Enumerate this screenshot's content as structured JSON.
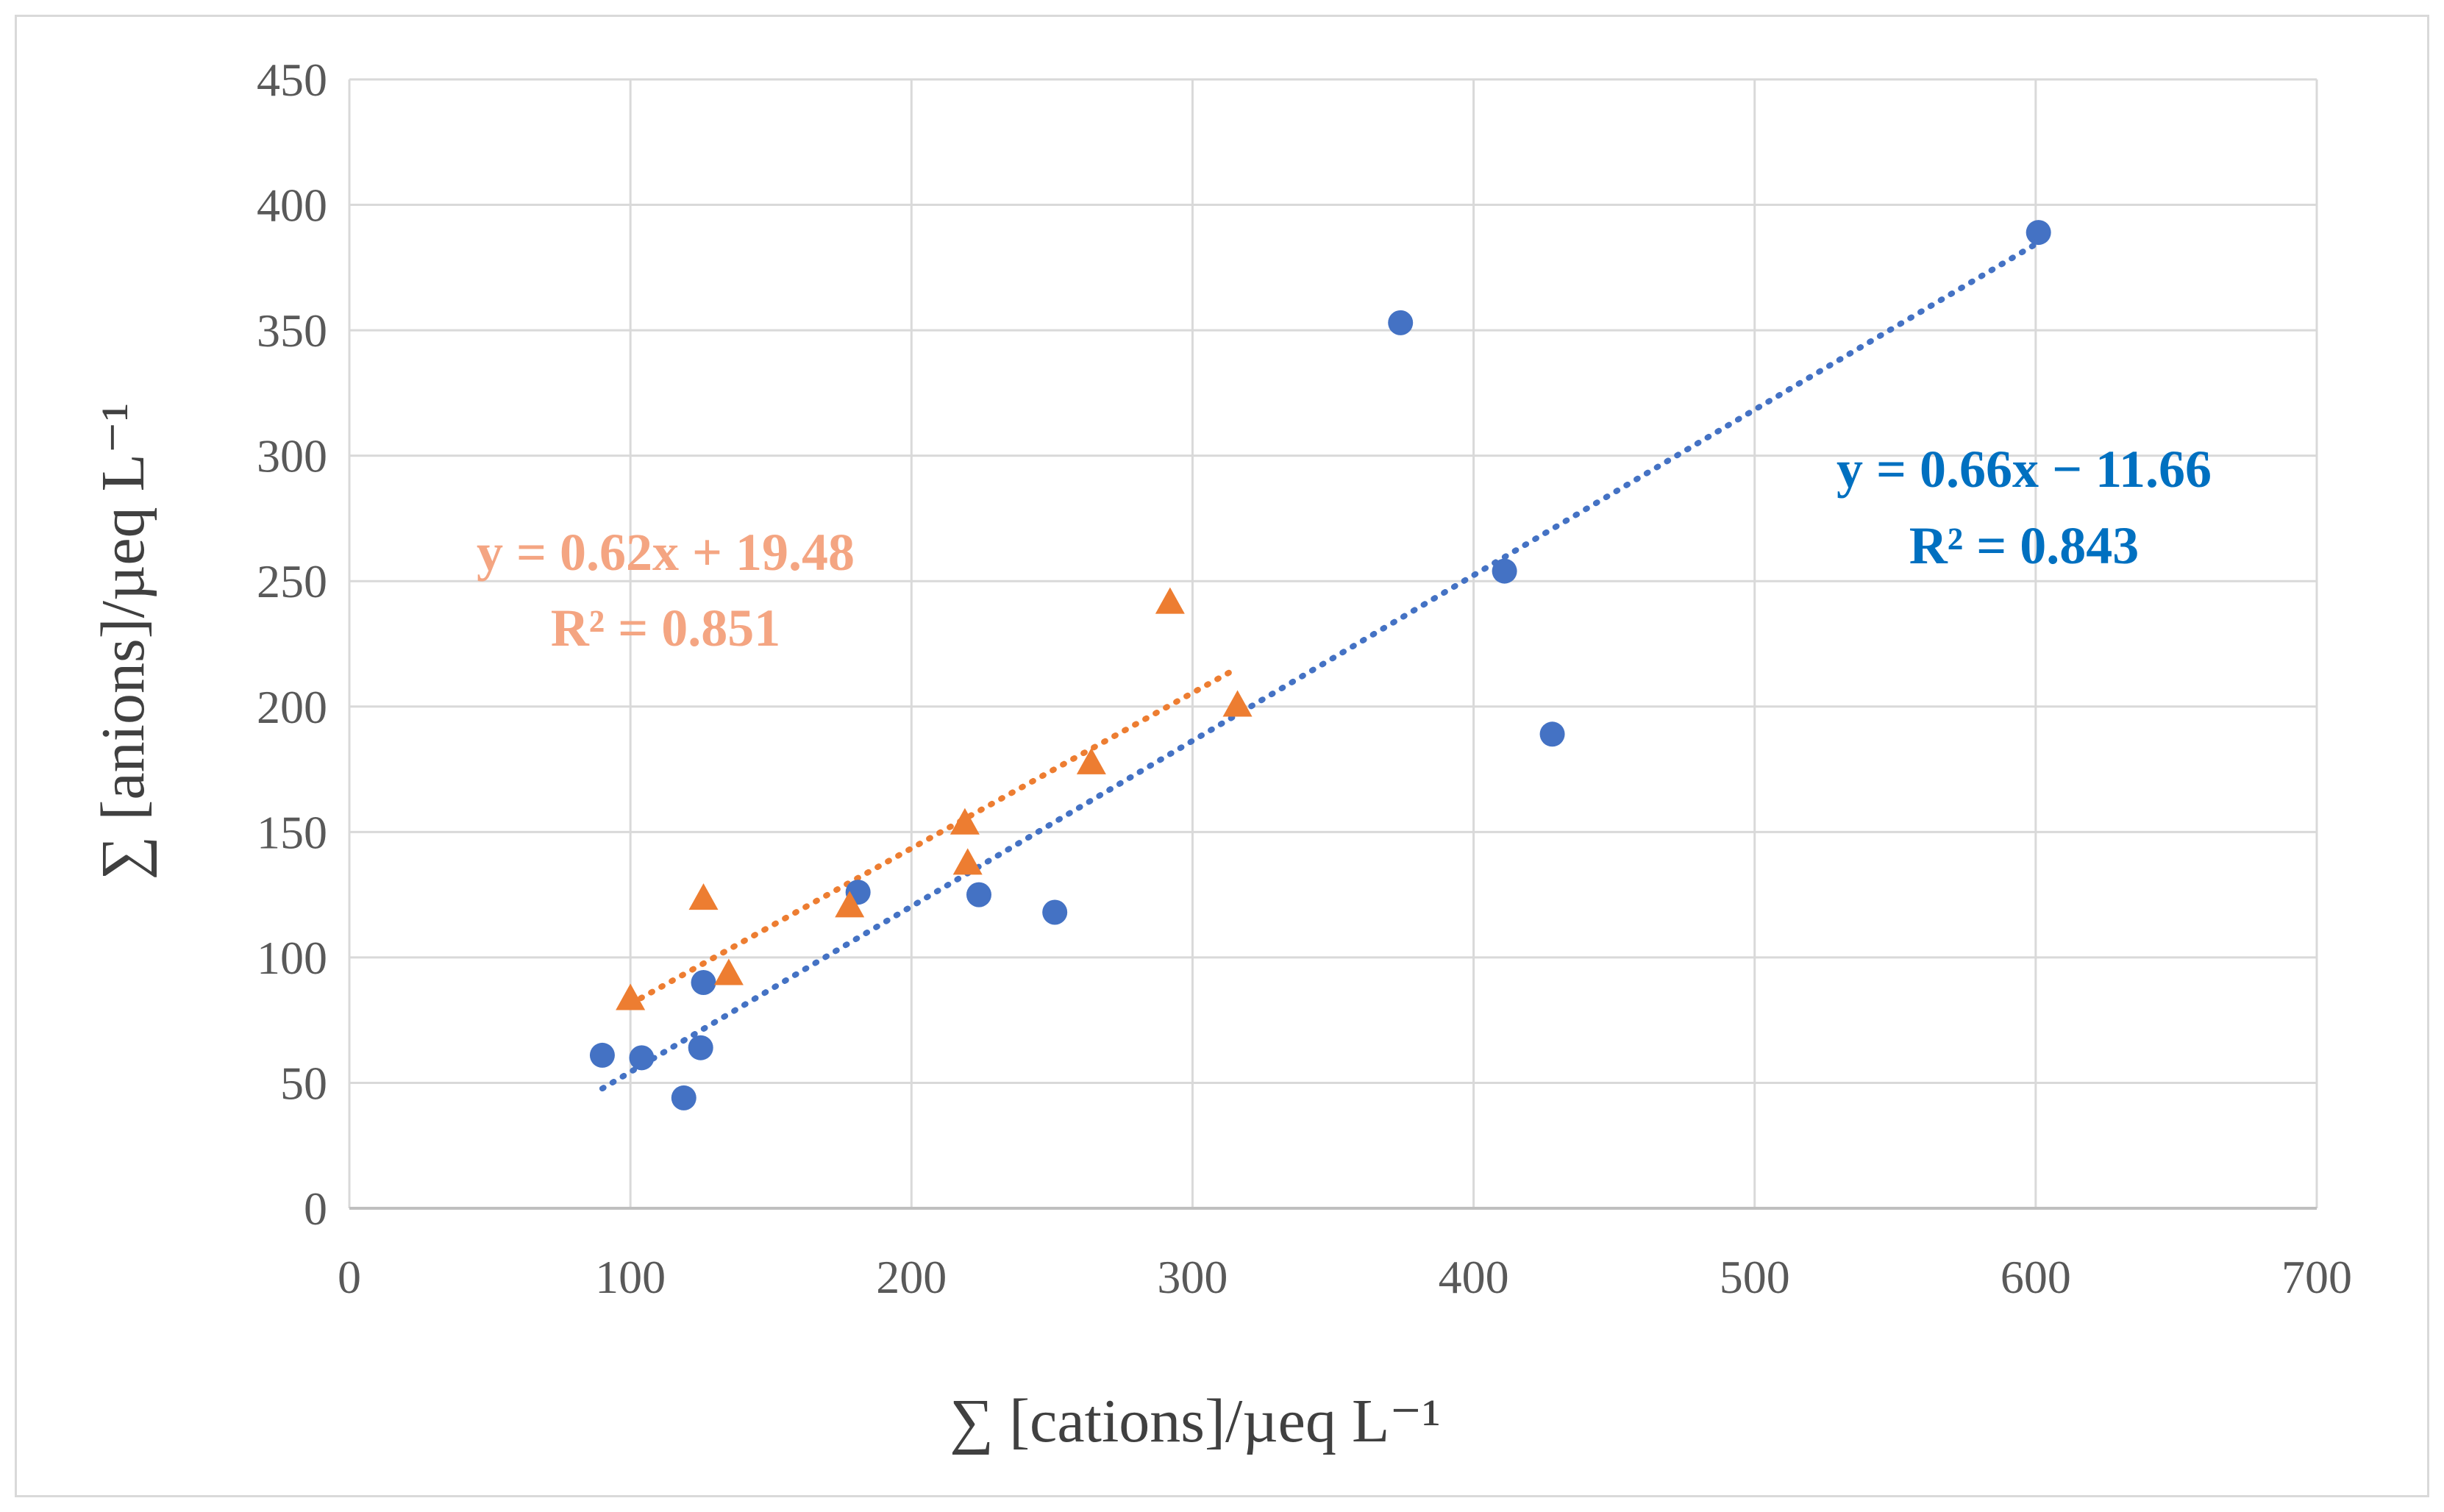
{
  "chart_data": {
    "type": "scatter",
    "title": "",
    "xlabel": "∑ [cations]/µeq L⁻¹",
    "ylabel": "∑ [anions]/µeq L⁻¹",
    "xlim": [
      0,
      700
    ],
    "ylim": [
      0,
      450
    ],
    "x_ticks": [
      0,
      100,
      200,
      300,
      400,
      500,
      600,
      700
    ],
    "y_ticks": [
      0,
      50,
      100,
      150,
      200,
      250,
      300,
      350,
      400,
      450
    ],
    "grid": true,
    "series": [
      {
        "name": "circles",
        "marker": "circle",
        "color": "#4472C4",
        "points": [
          {
            "x": 90,
            "y": 61
          },
          {
            "x": 104,
            "y": 60
          },
          {
            "x": 119,
            "y": 44
          },
          {
            "x": 125,
            "y": 64
          },
          {
            "x": 126,
            "y": 90
          },
          {
            "x": 181,
            "y": 126
          },
          {
            "x": 224,
            "y": 125
          },
          {
            "x": 251,
            "y": 118
          },
          {
            "x": 374,
            "y": 353
          },
          {
            "x": 411,
            "y": 254
          },
          {
            "x": 428,
            "y": 189
          },
          {
            "x": 601,
            "y": 389
          }
        ],
        "trendline": {
          "x_range": [
            90,
            601
          ],
          "slope": 0.66,
          "intercept": -11.66,
          "color": "#4472C4"
        }
      },
      {
        "name": "triangles",
        "marker": "triangle",
        "color": "#ED7D31",
        "points": [
          {
            "x": 100,
            "y": 83
          },
          {
            "x": 126,
            "y": 123
          },
          {
            "x": 135,
            "y": 93
          },
          {
            "x": 178,
            "y": 120
          },
          {
            "x": 219,
            "y": 153
          },
          {
            "x": 220,
            "y": 137
          },
          {
            "x": 264,
            "y": 177
          },
          {
            "x": 292,
            "y": 241
          },
          {
            "x": 316,
            "y": 200
          }
        ],
        "trendline": {
          "x_range": [
            100,
            316
          ],
          "slope": 0.62,
          "intercept": 19.48,
          "color": "#ED7D31"
        }
      }
    ],
    "annotations": {
      "orange_eq": "y = 0.62x + 19.48",
      "orange_r2": "R² = 0.851",
      "orange_color": "#F4A582",
      "blue_eq": "y = 0.66x − 11.66",
      "blue_r2": "R² = 0.843",
      "blue_color": "#0070C0"
    }
  }
}
